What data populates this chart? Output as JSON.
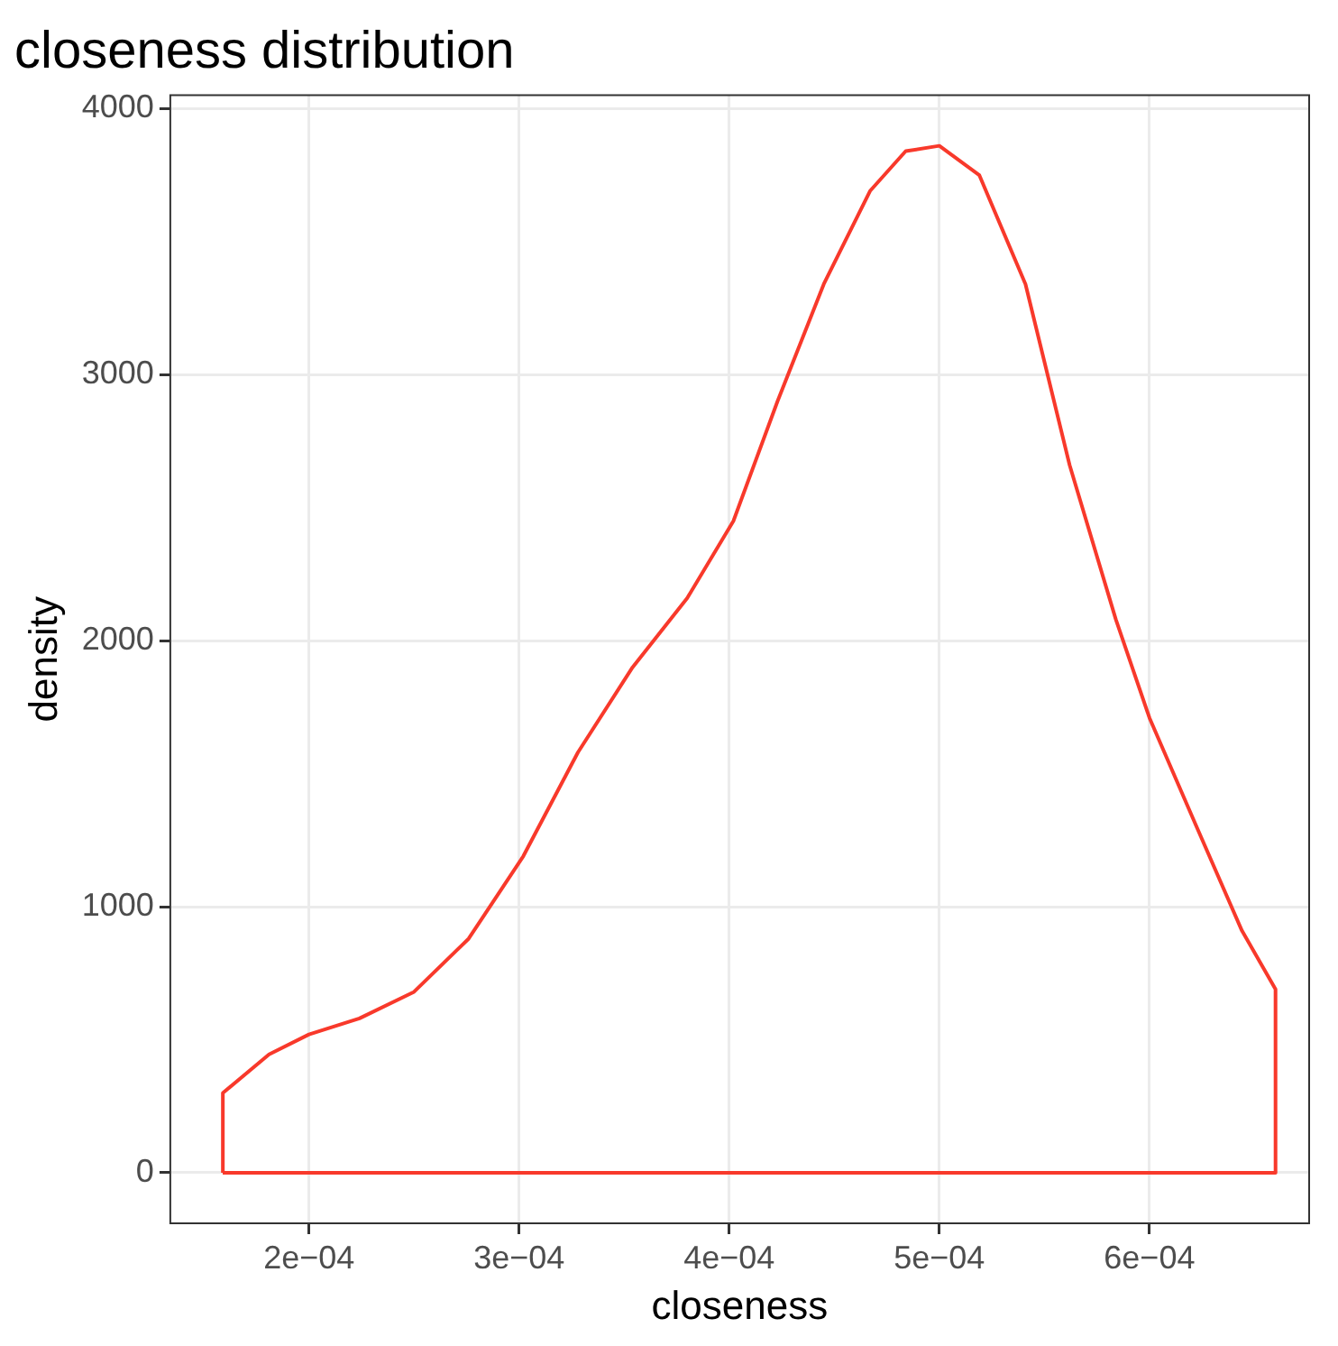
{
  "chart_data": {
    "type": "line",
    "title": "closeness distribution",
    "xlabel": "closeness",
    "ylabel": "density",
    "series": [
      {
        "color": "#f8392b",
        "x": [
          0.000159,
          0.00015901,
          0.000181,
          0.0002,
          0.000224,
          0.00025,
          0.000276,
          0.000302,
          0.000328,
          0.000354,
          0.00038,
          0.000402,
          0.000423,
          0.000445,
          0.000467,
          0.000484,
          0.0005,
          0.000519,
          0.000541,
          0.000562,
          0.000584,
          0.0006,
          0.000623,
          0.000644,
          0.00065999,
          0.00066
        ],
        "values": [
          0,
          300,
          445,
          520,
          580,
          680,
          880,
          1190,
          1580,
          1900,
          2160,
          2450,
          2900,
          3340,
          3690,
          3840,
          3860,
          3750,
          3340,
          2660,
          2080,
          1710,
          1290,
          910,
          690,
          0
        ]
      },
      {
        "color": "#f8392b",
        "x": [
          0.000159,
          0.00066
        ],
        "values": [
          0,
          0
        ]
      }
    ],
    "xlim": [
      0.000134,
      0.000676
    ],
    "xticks": [
      {
        "value": 0.0002,
        "label": "2e−04"
      },
      {
        "value": 0.0003,
        "label": "3e−04"
      },
      {
        "value": 0.0004,
        "label": "4e−04"
      },
      {
        "value": 0.0005,
        "label": "5e−04"
      },
      {
        "value": 0.0006,
        "label": "6e−04"
      }
    ],
    "ylim": [
      -190,
      4050
    ],
    "yticks": [
      0,
      1000,
      2000,
      3000,
      4000
    ],
    "grid": true,
    "marker": "none",
    "line_style": "solid"
  }
}
